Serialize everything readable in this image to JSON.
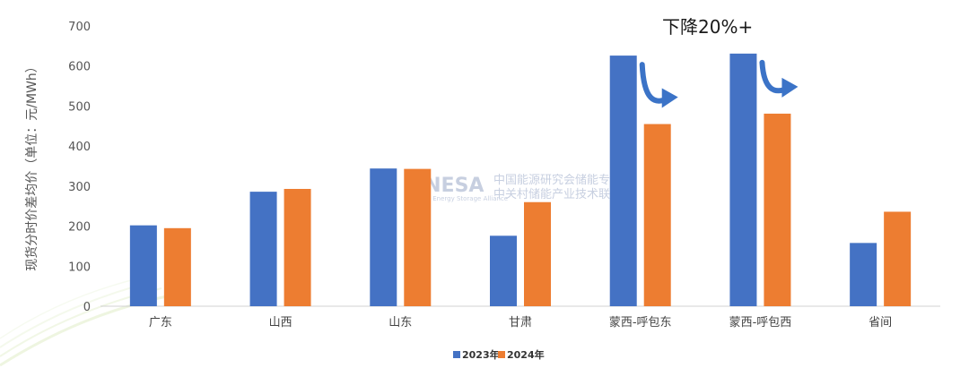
{
  "chart_data": {
    "type": "bar",
    "ylabel": "现货分时价差均价（单位：元/MWh）",
    "ylim": [
      0,
      700
    ],
    "yticks": [
      0,
      100,
      200,
      300,
      400,
      500,
      600,
      700
    ],
    "categories": [
      "广东",
      "山西",
      "山东",
      "甘肃",
      "蒙西-呼包东",
      "蒙西-呼包西",
      "省间"
    ],
    "series": [
      {
        "name": "2023年",
        "color": "#4472C4",
        "values": [
          202,
          286,
          344,
          176,
          626,
          631,
          158
        ]
      },
      {
        "name": "2024年",
        "color": "#ED7D31",
        "values": [
          195,
          293,
          343,
          260,
          455,
          481,
          236
        ]
      }
    ],
    "legend_position": "bottom-center",
    "grid": false,
    "annotation": {
      "text": "下降20%+",
      "arrow_color": "#3B73C7"
    }
  },
  "watermark": {
    "logo": "CNESA",
    "line1": "中国能源研究会储能专委会",
    "line2": "中关村储能产业技术联盟",
    "sub": "China Energy Storage Alliance"
  }
}
